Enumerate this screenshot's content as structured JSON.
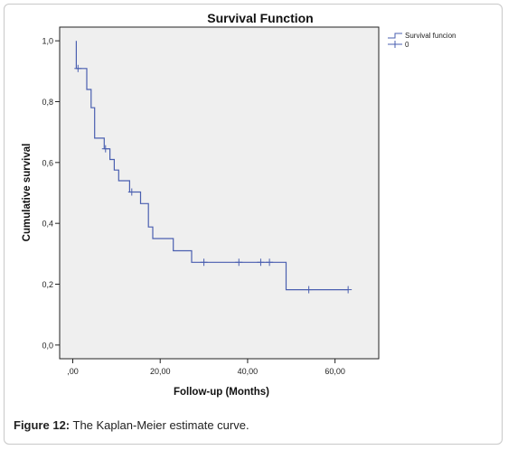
{
  "figure": {
    "caption_label": "Figure 12:",
    "caption_text": " The Kaplan-Meier estimate curve."
  },
  "chart_data": {
    "type": "line",
    "subtype": "step",
    "title": "Survival Function",
    "xlabel": "Follow-up (Months)",
    "ylabel": "Cumulative survival",
    "xlim": [
      -3,
      70
    ],
    "ylim": [
      -0.045,
      1.045
    ],
    "x_ticks": [
      {
        "value": 0,
        "label": ",00"
      },
      {
        "value": 20,
        "label": "20,00"
      },
      {
        "value": 40,
        "label": "40,00"
      },
      {
        "value": 60,
        "label": "60,00"
      }
    ],
    "y_ticks": [
      {
        "value": 0.0,
        "label": "0,0"
      },
      {
        "value": 0.2,
        "label": "0,2"
      },
      {
        "value": 0.4,
        "label": "0,4"
      },
      {
        "value": 0.6,
        "label": "0,6"
      },
      {
        "value": 0.8,
        "label": "0,8"
      },
      {
        "value": 1.0,
        "label": "1,0"
      }
    ],
    "grid": false,
    "legend_position": "top-right-outside",
    "series": [
      {
        "name": "Survival funcion",
        "color": "#4a5fb0",
        "steps": [
          [
            0.8,
            1.0
          ],
          [
            0.8,
            0.909
          ],
          [
            3.2,
            0.909
          ],
          [
            3.2,
            0.84
          ],
          [
            4.2,
            0.84
          ],
          [
            4.2,
            0.78
          ],
          [
            5.0,
            0.78
          ],
          [
            5.0,
            0.68
          ],
          [
            7.2,
            0.68
          ],
          [
            7.2,
            0.645
          ],
          [
            8.5,
            0.645
          ],
          [
            8.5,
            0.61
          ],
          [
            9.5,
            0.61
          ],
          [
            9.5,
            0.575
          ],
          [
            10.5,
            0.575
          ],
          [
            10.5,
            0.54
          ],
          [
            13.0,
            0.54
          ],
          [
            13.0,
            0.503
          ],
          [
            15.5,
            0.503
          ],
          [
            15.5,
            0.465
          ],
          [
            17.3,
            0.465
          ],
          [
            17.3,
            0.388
          ],
          [
            18.3,
            0.388
          ],
          [
            18.3,
            0.35
          ],
          [
            23.0,
            0.35
          ],
          [
            23.0,
            0.31
          ],
          [
            27.2,
            0.31
          ],
          [
            27.2,
            0.272
          ],
          [
            48.8,
            0.272
          ],
          [
            48.8,
            0.182
          ],
          [
            63.0,
            0.182
          ]
        ]
      },
      {
        "name": "0",
        "color": "#4a5fb0",
        "censored": [
          [
            1.2,
            0.909
          ],
          [
            7.5,
            0.645
          ],
          [
            13.5,
            0.503
          ],
          [
            30.0,
            0.272
          ],
          [
            38.0,
            0.272
          ],
          [
            43.0,
            0.272
          ],
          [
            45.0,
            0.272
          ],
          [
            54.0,
            0.182
          ],
          [
            63.0,
            0.182
          ]
        ]
      }
    ]
  }
}
